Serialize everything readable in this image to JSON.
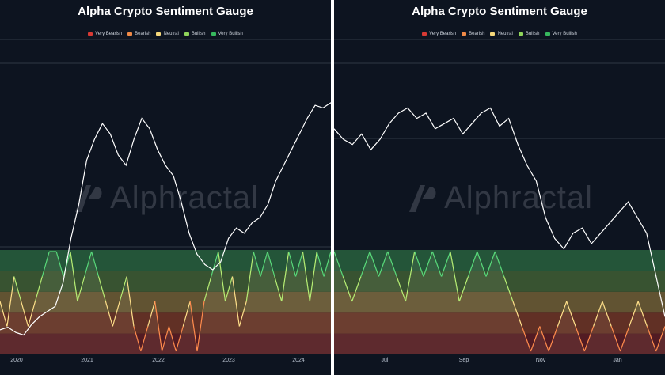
{
  "legend": [
    {
      "label": "Very Bearish",
      "color": "#d83a34"
    },
    {
      "label": "Bearish",
      "color": "#f08a47"
    },
    {
      "label": "Neutral",
      "color": "#f5d77a"
    },
    {
      "label": "Bullish",
      "color": "#8fd45a"
    },
    {
      "label": "Very Bullish",
      "color": "#37b85e"
    }
  ],
  "watermark": "Alphractal",
  "chart_data": [
    {
      "type": "line",
      "title": "Alpha Crypto Sentiment Gauge",
      "x_ticks": [
        "2020",
        "2021",
        "2022",
        "2023",
        "2024"
      ],
      "series": [
        {
          "kind": "price",
          "values": [
            0.07,
            0.08,
            0.06,
            0.05,
            0.09,
            0.12,
            0.14,
            0.16,
            0.25,
            0.42,
            0.55,
            0.72,
            0.8,
            0.86,
            0.82,
            0.74,
            0.7,
            0.8,
            0.88,
            0.84,
            0.76,
            0.7,
            0.66,
            0.56,
            0.44,
            0.36,
            0.32,
            0.3,
            0.33,
            0.42,
            0.46,
            0.44,
            0.48,
            0.5,
            0.55,
            0.64,
            0.7,
            0.76,
            0.82,
            0.88,
            0.93,
            0.92,
            0.94
          ]
        },
        {
          "kind": "sentiment",
          "values": [
            2,
            1,
            3,
            2,
            1,
            2,
            3,
            4,
            4,
            3,
            4,
            2,
            3,
            4,
            3,
            2,
            1,
            2,
            3,
            1,
            0,
            1,
            2,
            0,
            1,
            0,
            1,
            2,
            0,
            2,
            3,
            4,
            2,
            3,
            1,
            2,
            4,
            3,
            4,
            3,
            2,
            4,
            3,
            4,
            2,
            4,
            3,
            4
          ]
        }
      ],
      "sentiment_levels": [
        "Very Bearish",
        "Bearish",
        "Neutral",
        "Bullish",
        "Very Bullish"
      ]
    },
    {
      "type": "line",
      "title": "Alpha Crypto Sentiment Gauge",
      "x_ticks": [
        "Jul",
        "Sep",
        "Nov",
        "Jan"
      ],
      "series": [
        {
          "kind": "price",
          "values": [
            0.84,
            0.8,
            0.78,
            0.82,
            0.76,
            0.8,
            0.86,
            0.9,
            0.92,
            0.88,
            0.9,
            0.84,
            0.86,
            0.88,
            0.82,
            0.86,
            0.9,
            0.92,
            0.85,
            0.88,
            0.78,
            0.7,
            0.64,
            0.5,
            0.42,
            0.38,
            0.44,
            0.46,
            0.4,
            0.44,
            0.48,
            0.52,
            0.56,
            0.5,
            0.44,
            0.28,
            0.12
          ]
        },
        {
          "kind": "sentiment",
          "values": [
            4,
            3,
            2,
            3,
            4,
            3,
            4,
            3,
            2,
            4,
            3,
            4,
            3,
            4,
            2,
            3,
            4,
            3,
            4,
            3,
            2,
            1,
            0,
            1,
            0,
            1,
            2,
            1,
            0,
            1,
            2,
            1,
            0,
            1,
            2,
            1,
            0,
            1
          ]
        }
      ],
      "sentiment_levels": [
        "Very Bearish",
        "Bearish",
        "Neutral",
        "Bullish",
        "Very Bullish"
      ]
    }
  ]
}
